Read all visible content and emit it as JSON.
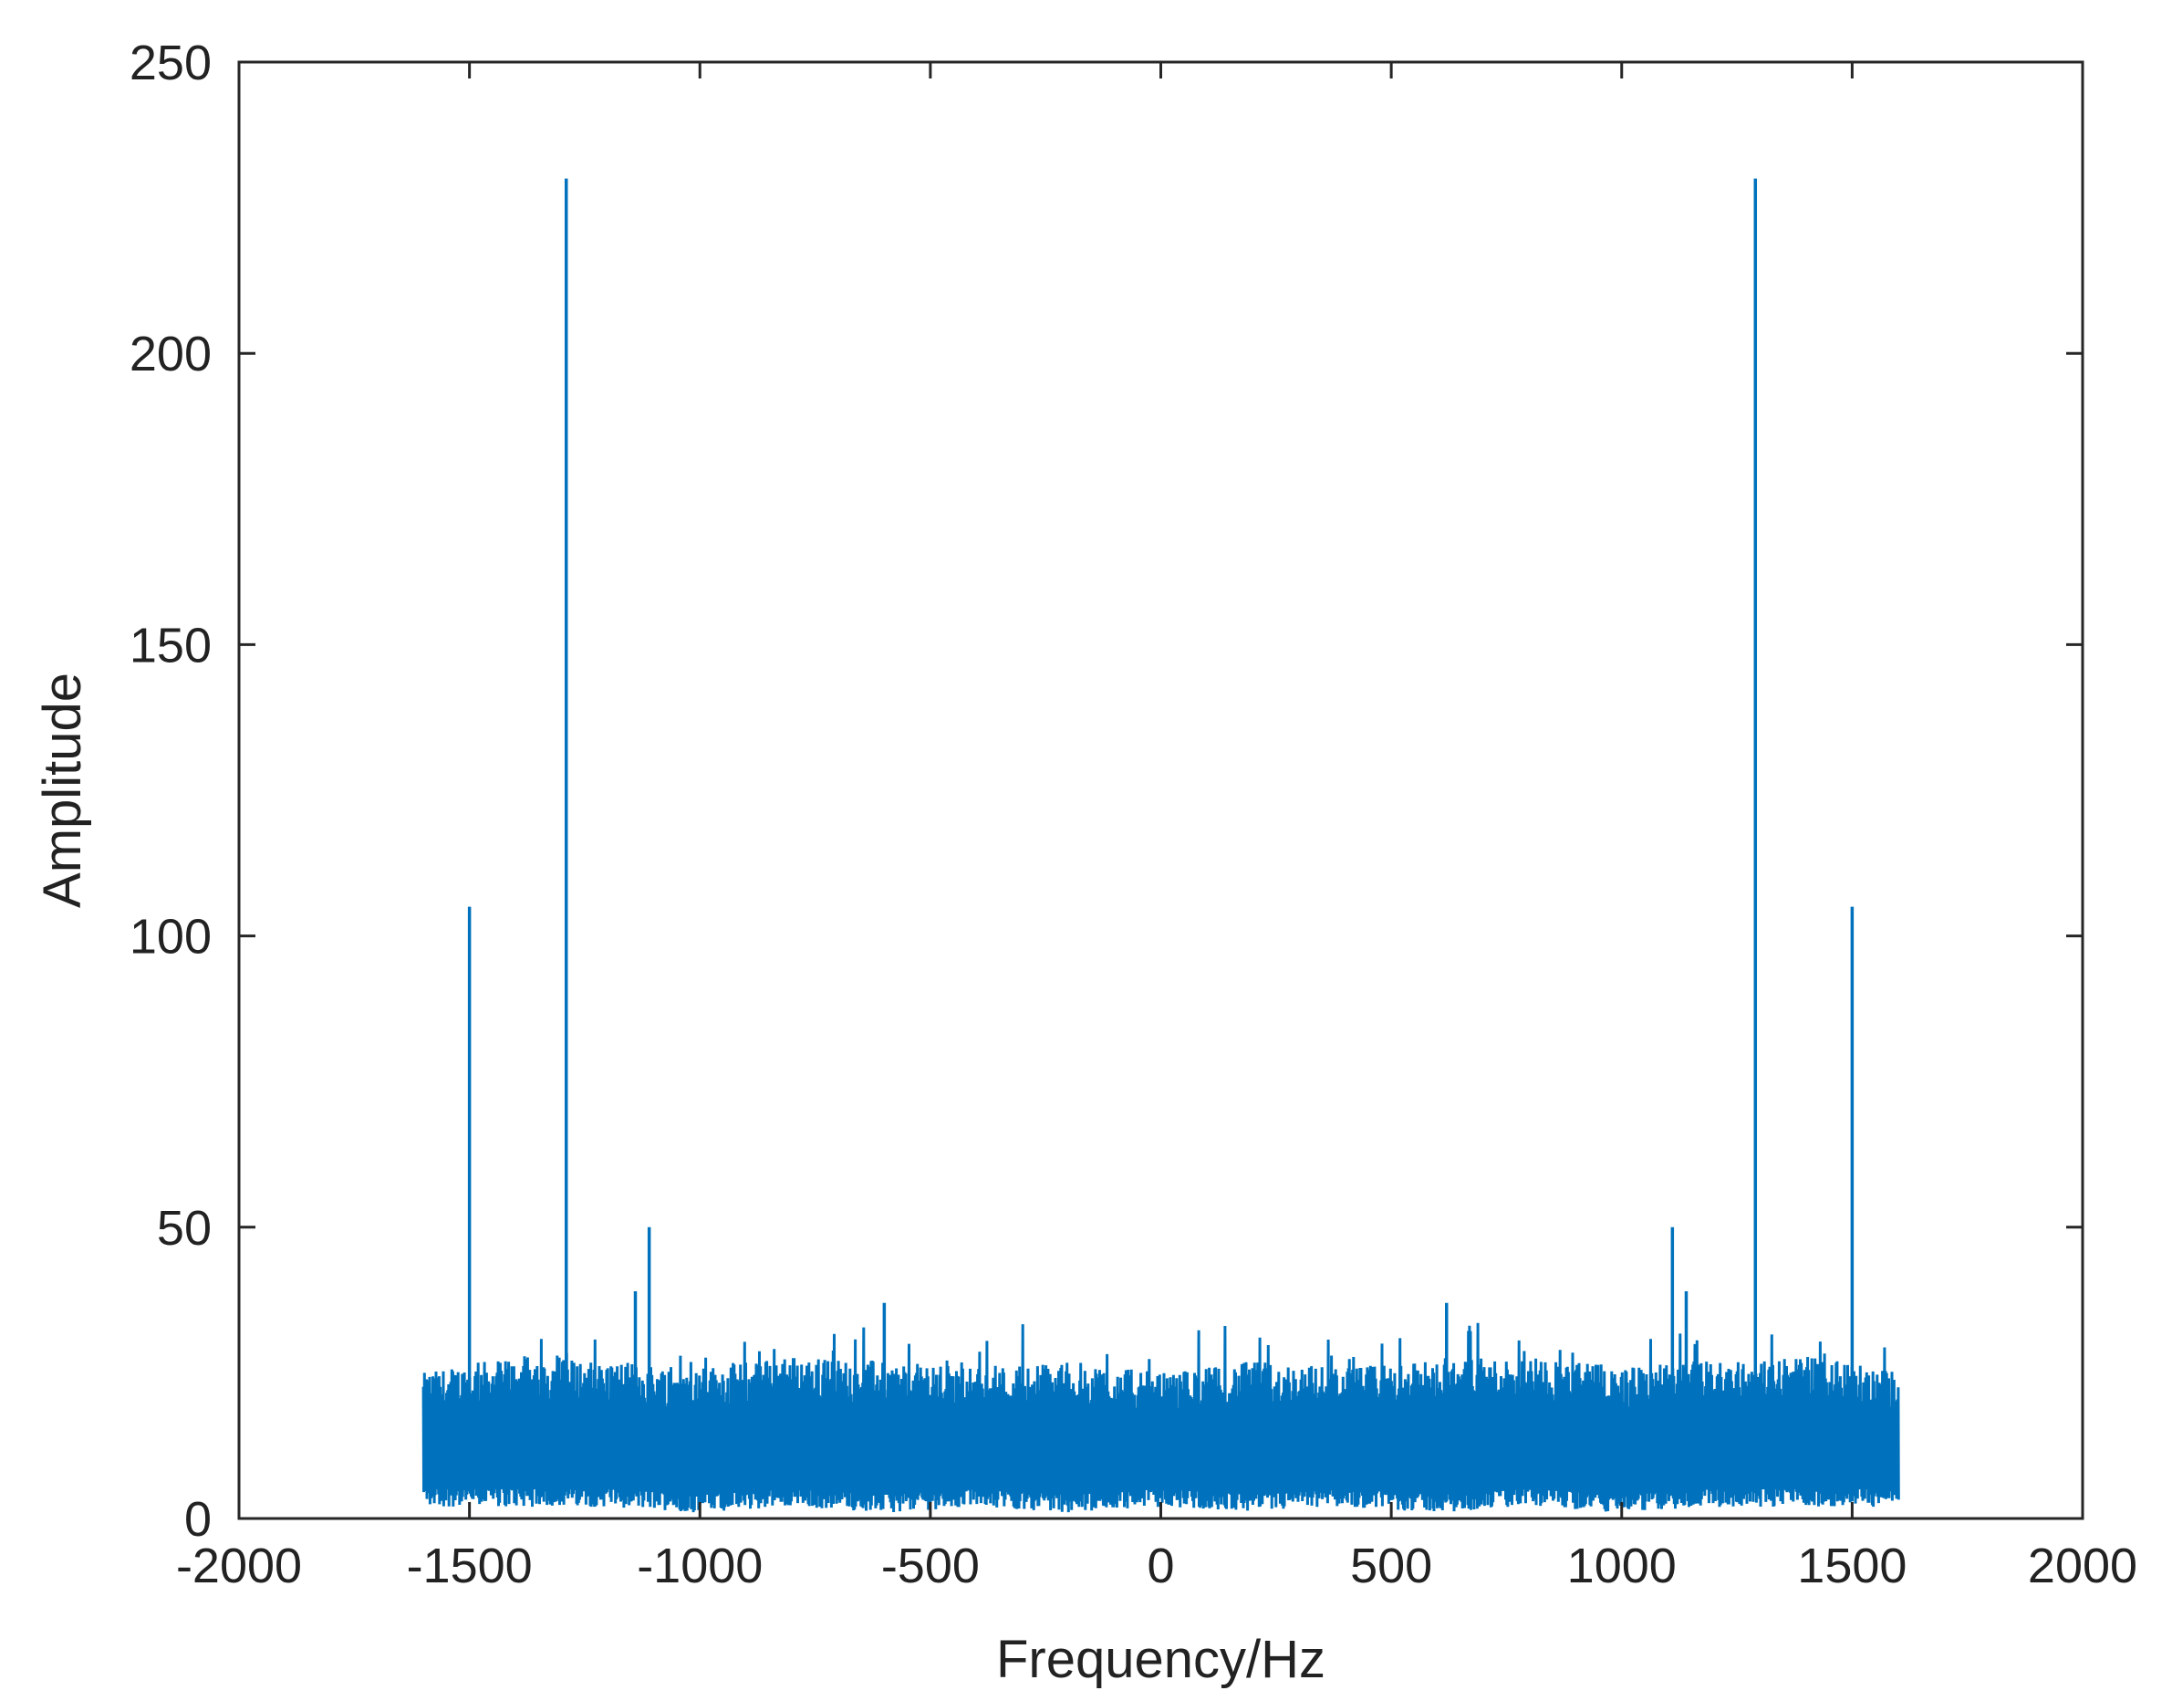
{
  "chart_data": {
    "type": "line",
    "title": "",
    "xlabel": "Frequency/Hz",
    "ylabel": "Amplitude",
    "xlim": [
      -2000,
      2000
    ],
    "ylim": [
      0,
      250
    ],
    "xticks": [
      -2000,
      -1500,
      -1000,
      -500,
      0,
      500,
      1000,
      1500,
      2000
    ],
    "yticks": [
      0,
      50,
      100,
      150,
      200,
      250
    ],
    "grid": false,
    "legend": "none",
    "colors": {
      "series": "#0072BD",
      "axes": "#262626"
    },
    "series": [
      {
        "style": "noise-band",
        "x_range": [
          -1600,
          1600
        ],
        "envelope": {
          "x": [
            -1600,
            -1400,
            -1200,
            -1000,
            -800,
            -600,
            -400,
            -200,
            0,
            200,
            400,
            600,
            800,
            1000,
            1200,
            1400,
            1600
          ],
          "y_low": [
            2,
            2,
            2,
            1,
            2,
            1,
            2,
            1,
            2,
            1,
            2,
            1,
            2,
            1,
            2,
            2,
            2
          ],
          "y_high": [
            25,
            28,
            27,
            26,
            28,
            27,
            26,
            27,
            25,
            27,
            26,
            27,
            28,
            26,
            27,
            28,
            25
          ]
        },
        "peaks": [
          {
            "x": -1500,
            "y": 105
          },
          {
            "x": -1290,
            "y": 230
          },
          {
            "x": -1110,
            "y": 50
          },
          {
            "x": -1140,
            "y": 39
          },
          {
            "x": -600,
            "y": 37
          },
          {
            "x": 620,
            "y": 37
          },
          {
            "x": 1110,
            "y": 50
          },
          {
            "x": 1140,
            "y": 39
          },
          {
            "x": 1290,
            "y": 230
          },
          {
            "x": 1500,
            "y": 105
          }
        ]
      }
    ]
  }
}
